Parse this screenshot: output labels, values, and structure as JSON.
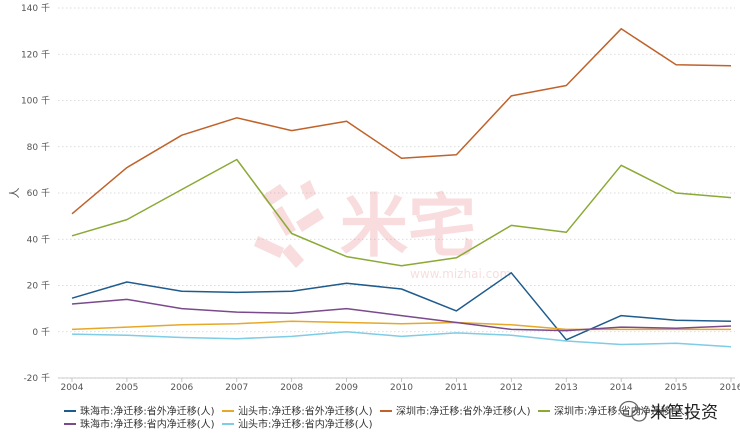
{
  "chart_data": {
    "type": "line",
    "ylabel": "人",
    "x": [
      "2004",
      "2005",
      "2006",
      "2007",
      "2008",
      "2009",
      "2010",
      "2011",
      "2012",
      "2013",
      "2014",
      "2015",
      "2016"
    ],
    "ylim": [
      -20,
      140
    ],
    "yticks": [
      -20,
      0,
      20,
      40,
      60,
      80,
      100,
      120,
      140
    ],
    "ytick_labels": [
      "-20 千",
      "0 千",
      "20 千",
      "40 千",
      "60 千",
      "80 千",
      "100 千",
      "120 千",
      "140 千"
    ],
    "grid": "horizontal-dotted",
    "legend_position": "bottom",
    "series": [
      {
        "name": "珠海市:净迁移:省外净迁移(人)",
        "color": "#1f5b8c",
        "values": [
          14.5,
          21.5,
          17.5,
          17,
          17.5,
          21,
          18.5,
          9,
          25.5,
          -3.5,
          7,
          5,
          4.5
        ]
      },
      {
        "name": "汕头市:净迁移:省外净迁移(人)",
        "color": "#e6a828",
        "values": [
          1,
          2,
          3,
          3.5,
          4.5,
          4,
          3.5,
          4,
          3,
          1,
          1,
          1,
          1
        ]
      },
      {
        "name": "深圳市:净迁移:省外净迁移(人)",
        "color": "#c0622a",
        "values": [
          51,
          71,
          85,
          92.5,
          87,
          91,
          75,
          76.5,
          102,
          106.5,
          131,
          115.5,
          115
        ]
      },
      {
        "name": "深圳市:净迁移:省内净迁移(人)",
        "color": "#8aaa35",
        "values": [
          41.5,
          48.5,
          61.5,
          74.5,
          42.5,
          32.5,
          28.5,
          32,
          46,
          43,
          72,
          60,
          58
        ]
      },
      {
        "name": "珠海市:净迁移:省内净迁移(人)",
        "color": "#7a4a8c",
        "values": [
          12,
          14,
          10,
          8.5,
          8,
          10,
          7,
          4,
          1,
          0.5,
          2,
          1.5,
          2.5
        ]
      },
      {
        "name": "汕头市:净迁移:省内净迁移(人)",
        "color": "#7ecce6",
        "values": [
          -1,
          -1.5,
          -2.5,
          -3,
          -2,
          0,
          -2,
          -0.5,
          -1.5,
          -4,
          -5.5,
          -5,
          -6.5
        ]
      }
    ]
  },
  "watermark": {
    "text": "米宅",
    "url": "www.mizhai.com",
    "color": "#e8868a"
  },
  "brand": {
    "text": "米筐投资",
    "icon": "wechat-icon"
  }
}
